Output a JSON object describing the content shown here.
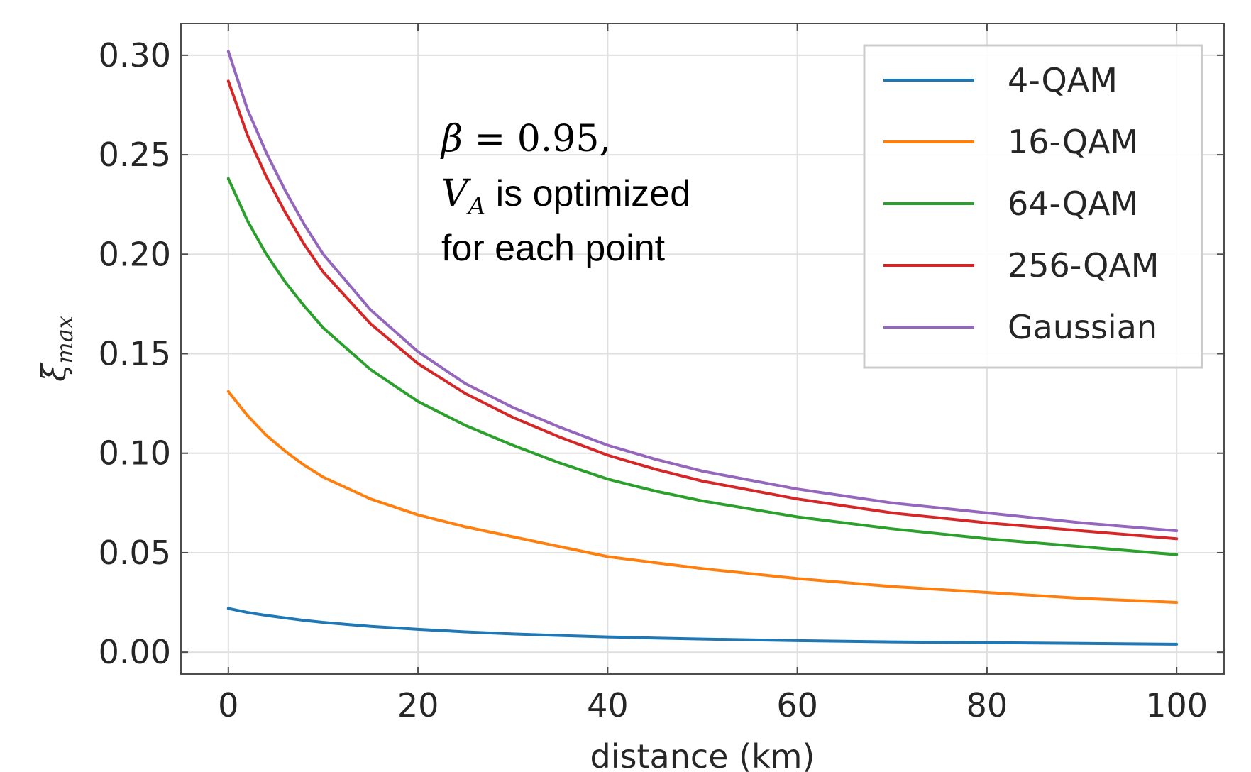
{
  "chart_data": {
    "type": "line",
    "title": "",
    "xlabel": "distance (km)",
    "ylabel": "ξ",
    "ylabel_subscript": "max",
    "xlim": [
      -5,
      105
    ],
    "ylim": [
      -0.011,
      0.316
    ],
    "xticks": [
      0,
      20,
      40,
      60,
      80,
      100
    ],
    "yticks": [
      0.0,
      0.05,
      0.1,
      0.15,
      0.2,
      0.25,
      0.3
    ],
    "xtick_labels": [
      "0",
      "20",
      "40",
      "60",
      "80",
      "100"
    ],
    "ytick_labels": [
      "0.00",
      "0.05",
      "0.10",
      "0.15",
      "0.20",
      "0.25",
      "0.30"
    ],
    "grid": true,
    "legend_position": "top-right",
    "annotation": {
      "beta_symbol": "β",
      "beta_eq": " = 0.95,",
      "va_symbol": "V",
      "va_subscript": "A",
      "va_text": " is optimized",
      "line3": "for each point"
    },
    "x": [
      0,
      2,
      4,
      6,
      8,
      10,
      15,
      20,
      25,
      30,
      35,
      40,
      45,
      50,
      60,
      70,
      80,
      90,
      100
    ],
    "series": [
      {
        "name": "4-QAM",
        "color": "#1f77b4",
        "values": [
          0.022,
          0.02,
          0.0185,
          0.0172,
          0.016,
          0.015,
          0.013,
          0.0115,
          0.0102,
          0.0092,
          0.0084,
          0.0077,
          0.0071,
          0.0066,
          0.0058,
          0.0052,
          0.0048,
          0.0044,
          0.004
        ]
      },
      {
        "name": "16-QAM",
        "color": "#ff7f0e",
        "values": [
          0.131,
          0.119,
          0.109,
          0.101,
          0.094,
          0.088,
          0.077,
          0.069,
          0.063,
          0.058,
          0.053,
          0.048,
          0.045,
          0.042,
          0.037,
          0.033,
          0.03,
          0.027,
          0.025
        ]
      },
      {
        "name": "64-QAM",
        "color": "#2ca02c",
        "values": [
          0.238,
          0.217,
          0.2,
          0.186,
          0.174,
          0.163,
          0.142,
          0.126,
          0.114,
          0.104,
          0.095,
          0.087,
          0.081,
          0.076,
          0.068,
          0.062,
          0.057,
          0.053,
          0.049
        ]
      },
      {
        "name": "256-QAM",
        "color": "#d62728",
        "values": [
          0.287,
          0.26,
          0.239,
          0.221,
          0.205,
          0.191,
          0.165,
          0.145,
          0.13,
          0.118,
          0.108,
          0.099,
          0.092,
          0.086,
          0.077,
          0.07,
          0.065,
          0.061,
          0.057
        ]
      },
      {
        "name": "Gaussian",
        "color": "#9467bd",
        "values": [
          0.302,
          0.273,
          0.251,
          0.232,
          0.215,
          0.2,
          0.172,
          0.151,
          0.135,
          0.123,
          0.113,
          0.104,
          0.097,
          0.091,
          0.082,
          0.075,
          0.07,
          0.065,
          0.061
        ]
      }
    ]
  }
}
